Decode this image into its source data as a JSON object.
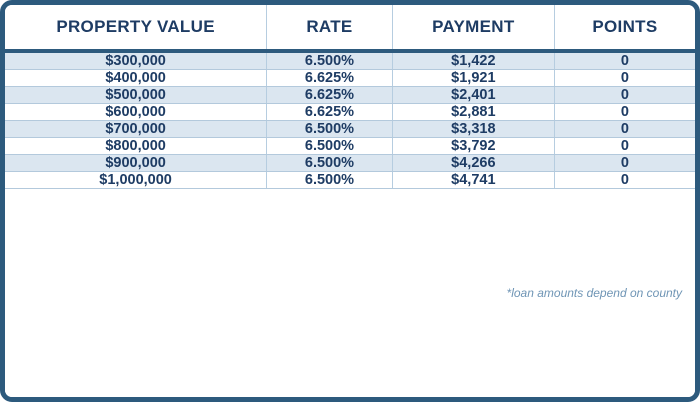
{
  "table": {
    "headers": [
      "PROPERTY VALUE",
      "RATE",
      "PAYMENT",
      "POINTS"
    ],
    "rows": [
      {
        "property_value": "$300,000",
        "rate": "6.500%",
        "payment": "$1,422",
        "points": "0"
      },
      {
        "property_value": "$400,000",
        "rate": "6.625%",
        "payment": "$1,921",
        "points": "0"
      },
      {
        "property_value": "$500,000",
        "rate": "6.625%",
        "payment": "$2,401",
        "points": "0"
      },
      {
        "property_value": "$600,000",
        "rate": "6.625%",
        "payment": "$2,881",
        "points": "0"
      },
      {
        "property_value": "$700,000",
        "rate": "6.500%",
        "payment": "$3,318",
        "points": "0"
      },
      {
        "property_value": "$800,000",
        "rate": "6.500%",
        "payment": "$3,792",
        "points": "0"
      },
      {
        "property_value": "$900,000",
        "rate": "6.500%",
        "payment": "$4,266",
        "points": "0"
      },
      {
        "property_value": "$1,000,000",
        "rate": "6.500%",
        "payment": "$4,741",
        "points": "0"
      }
    ],
    "footnote": "*loan amounts depend on county"
  },
  "colors": {
    "border": "#2d5a7d",
    "row_stripe": "#dbe6f0",
    "text": "#1e3c64",
    "divider": "#b3c9dc",
    "footnote_text": "#6f95b5"
  },
  "chart_data": {
    "type": "table",
    "columns": [
      "PROPERTY VALUE",
      "RATE",
      "PAYMENT",
      "POINTS"
    ],
    "rows": [
      [
        "$300,000",
        "6.500%",
        "$1,422",
        "0"
      ],
      [
        "$400,000",
        "6.625%",
        "$1,921",
        "0"
      ],
      [
        "$500,000",
        "6.625%",
        "$2,401",
        "0"
      ],
      [
        "$600,000",
        "6.625%",
        "$2,881",
        "0"
      ],
      [
        "$700,000",
        "6.500%",
        "$3,318",
        "0"
      ],
      [
        "$800,000",
        "6.500%",
        "$3,792",
        "0"
      ],
      [
        "$900,000",
        "6.500%",
        "$4,266",
        "0"
      ],
      [
        "$1,000,000",
        "6.500%",
        "$4,741",
        "0"
      ]
    ],
    "title": "",
    "annotations": [
      "*loan amounts depend on county"
    ],
    "layout": {
      "striped_rows": "odd rows shaded light blue",
      "header_position": "top"
    }
  }
}
